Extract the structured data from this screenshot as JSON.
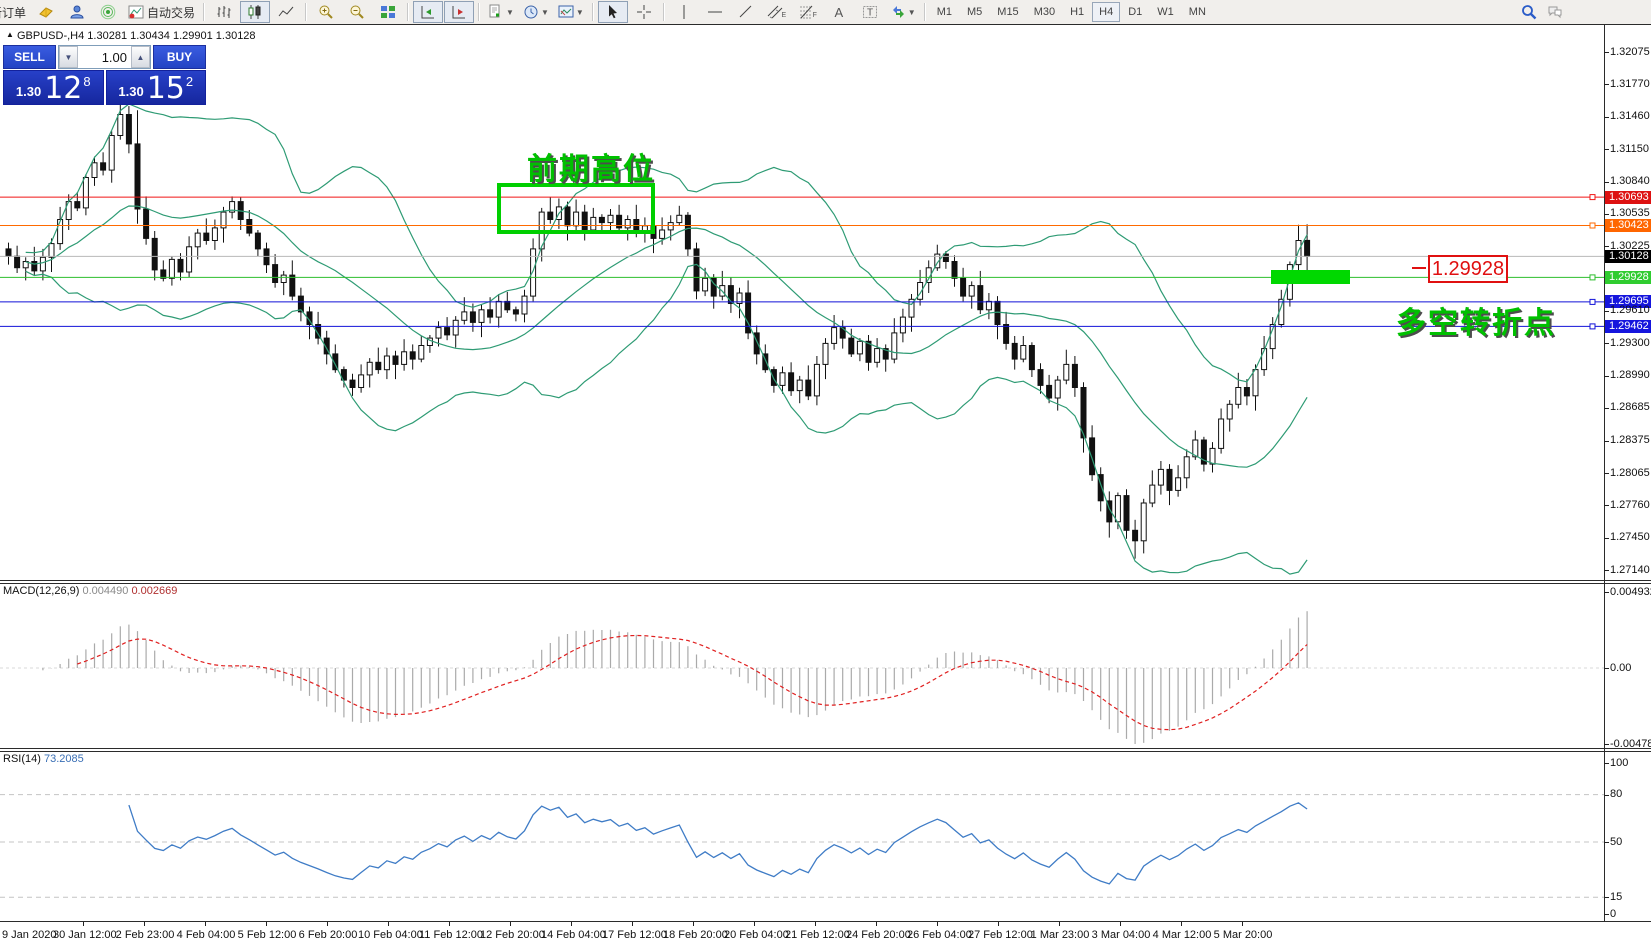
{
  "toolbar": {
    "new_order_label": "新订单",
    "autotrading_label": "自动交易",
    "timeframes": {
      "items": [
        "M1",
        "M5",
        "M15",
        "M30",
        "H1",
        "H4",
        "D1",
        "W1",
        "MN"
      ],
      "selected": "H4"
    },
    "icons": {
      "metaeditor": "yellow-book",
      "accounts": "user-blue",
      "signals": "green-signal",
      "autotrading": "chart-play",
      "bar_chart": "ohlc-bars",
      "candlesticks": "candlestick-chart",
      "line_chart": "line-chart",
      "zoom_in": "magnifier-plus",
      "zoom_out": "magnifier-minus",
      "tile_windows": "tiled-squares",
      "chart_shift": "axis-green-arrow",
      "auto_scroll": "axis-red-arrow",
      "indicators": "sheet-green-plus",
      "periods": "clock",
      "templates": "chart-picture",
      "cursor": "pointer-arrow",
      "crosshair": "crosshair",
      "vertical_line": "vertical-line",
      "horizontal_line": "horizontal-line",
      "trendline": "diagonal-line",
      "channel": "equidistant-channel",
      "fibonacci": "fibo-retracement",
      "text": "letter-a",
      "text_label": "boxed-t",
      "arrows": "arrow-shapes",
      "search": "blue-magnifier",
      "chat": "speech-bubbles"
    }
  },
  "chart": {
    "title": {
      "collapse_arrow": "▲",
      "symbol_period": "GBPUSD-,H4",
      "open": "1.30281",
      "high": "1.30434",
      "low": "1.29901",
      "close": "1.30128"
    },
    "one_click": {
      "sell_label": "SELL",
      "buy_label": "BUY",
      "volume": "1.00",
      "sell_price_small": "1.30",
      "sell_price_big": "12",
      "sell_price_sup": "8",
      "buy_price_small": "1.30",
      "buy_price_big": "15",
      "buy_price_sup": "2"
    },
    "annotations": {
      "prev_high_label": "前期高位",
      "turning_point_label": "多空转折点",
      "price_callout": "1.29928"
    },
    "price_lines": [
      {
        "price": 1.30693,
        "label": "1.30693",
        "line_color": "#f01515",
        "badge_bg": "#dd1111"
      },
      {
        "price": 1.30423,
        "label": "1.30423",
        "line_color": "#ff6a00",
        "badge_bg": "#ff6600"
      },
      {
        "price": 1.30128,
        "label": "1.30128",
        "line_color": "#b8b8b8",
        "badge_bg": "#000000"
      },
      {
        "price": 1.29928,
        "label": "1.29928",
        "line_color": "#2dbe2d",
        "badge_bg": "#2fcc2f"
      },
      {
        "price": 1.29695,
        "label": "1.29695",
        "line_color": "#1212d8",
        "badge_bg": "#1515dd"
      },
      {
        "price": 1.29462,
        "label": "1.29462",
        "line_color": "#1212d8",
        "badge_bg": "#1515dd"
      }
    ],
    "axis_ticks": [
      "1.32075",
      "1.31770",
      "1.31460",
      "1.31150",
      "1.30840",
      "1.30535",
      "1.30225",
      "1.29610",
      "1.29300",
      "1.28990",
      "1.28685",
      "1.28375",
      "1.28065",
      "1.27760",
      "1.27450",
      "1.27140"
    ]
  },
  "macd": {
    "label": "MACD(12,26,9)",
    "value_main": "0.004490",
    "value_signal": "0.002669",
    "axis": [
      "0.004932",
      "0.00",
      "-0.00478"
    ]
  },
  "rsi": {
    "label": "RSI(14)",
    "value": "73.2085",
    "axis": [
      "100",
      "80",
      "50",
      "15",
      "0"
    ],
    "levels": [
      80,
      50,
      15
    ]
  },
  "time_axis": {
    "labels": [
      "9 Jan 2020",
      "30 Jan 12:00",
      "2 Feb 23:00",
      "4 Feb 04:00",
      "5 Feb 12:00",
      "6 Feb 20:00",
      "10 Feb 04:00",
      "11 Feb 12:00",
      "12 Feb 20:00",
      "14 Feb 04:00",
      "17 Feb 12:00",
      "18 Feb 20:00",
      "20 Feb 04:00",
      "21 Feb 12:00",
      "24 Feb 20:00",
      "26 Feb 04:00",
      "27 Feb 12:00",
      "1 Mar 23:00",
      "3 Mar 04:00",
      "4 Mar 12:00",
      "5 Mar 20:00"
    ]
  },
  "chart_data": {
    "type": "candlestick",
    "symbol": "GBPUSD-",
    "period": "H4",
    "ohlc_current": {
      "open": 1.30281,
      "high": 1.30434,
      "low": 1.29901,
      "close": 1.30128
    },
    "indicators": [
      {
        "type": "bollinger",
        "period": 20,
        "deviation": 2,
        "color": "#2e9b74"
      },
      {
        "type": "macd",
        "fast": 12,
        "slow": 26,
        "signal": 9,
        "main_shown": 0.00449,
        "signal_shown": 0.002669,
        "axis_range": [
          0.004932,
          -0.00478
        ],
        "histogram_color": "#aaaaaa",
        "signal_color": "#e02020"
      },
      {
        "type": "rsi",
        "period": 14,
        "value_shown": 73.2085,
        "levels": [
          80,
          50,
          15
        ],
        "color": "#3f7cc6"
      }
    ],
    "candles": [
      [
        1.302,
        1.3026,
        1.3005,
        1.3013
      ],
      [
        1.3013,
        1.3023,
        1.2997,
        1.3002
      ],
      [
        1.3002,
        1.3012,
        1.299,
        1.3008
      ],
      [
        1.3008,
        1.3022,
        1.2995,
        1.2999
      ],
      [
        1.2999,
        1.302,
        1.299,
        1.3012
      ],
      [
        1.3012,
        1.303,
        1.2998,
        1.3025
      ],
      [
        1.3025,
        1.306,
        1.3019,
        1.3048
      ],
      [
        1.3048,
        1.3072,
        1.3038,
        1.3065
      ],
      [
        1.3065,
        1.3074,
        1.3056,
        1.3059
      ],
      [
        1.3059,
        1.3091,
        1.3052,
        1.3088
      ],
      [
        1.3088,
        1.3108,
        1.308,
        1.3102
      ],
      [
        1.3102,
        1.3112,
        1.309,
        1.3095
      ],
      [
        1.3095,
        1.3132,
        1.3083,
        1.3128
      ],
      [
        1.3128,
        1.3165,
        1.3124,
        1.3148
      ],
      [
        1.3148,
        1.3156,
        1.3111,
        1.312
      ],
      [
        1.312,
        1.3152,
        1.3044,
        1.3058
      ],
      [
        1.3058,
        1.307,
        1.3024,
        1.303
      ],
      [
        1.303,
        1.3037,
        1.299,
        1.3
      ],
      [
        1.3,
        1.3009,
        1.2989,
        1.2992
      ],
      [
        1.2992,
        1.3013,
        1.2985,
        1.301
      ],
      [
        1.301,
        1.3016,
        1.299,
        1.2998
      ],
      [
        1.2998,
        1.3032,
        1.2993,
        1.3022
      ],
      [
        1.3022,
        1.3039,
        1.301,
        1.3035
      ],
      [
        1.3035,
        1.3049,
        1.3024,
        1.3028
      ],
      [
        1.3028,
        1.3048,
        1.3019,
        1.304
      ],
      [
        1.304,
        1.306,
        1.3026,
        1.3055
      ],
      [
        1.3055,
        1.307,
        1.3049,
        1.3065
      ],
      [
        1.3065,
        1.3069,
        1.3038,
        1.3048
      ],
      [
        1.3048,
        1.3057,
        1.3032,
        1.3035
      ],
      [
        1.3035,
        1.3038,
        1.3013,
        1.302
      ],
      [
        1.302,
        1.3026,
        1.2997,
        1.3005
      ],
      [
        1.3005,
        1.3015,
        1.2983,
        1.2988
      ],
      [
        1.2988,
        1.2999,
        1.2976,
        1.2995
      ],
      [
        1.2995,
        1.3009,
        1.2971,
        1.2975
      ],
      [
        1.2975,
        1.2983,
        1.2951,
        1.296
      ],
      [
        1.296,
        1.2965,
        1.2934,
        1.2948
      ],
      [
        1.2948,
        1.296,
        1.2929,
        1.2935
      ],
      [
        1.2935,
        1.2942,
        1.291,
        1.292
      ],
      [
        1.292,
        1.2929,
        1.2902,
        1.2905
      ],
      [
        1.2905,
        1.2908,
        1.2888,
        1.2895
      ],
      [
        1.2895,
        1.2901,
        1.288,
        1.2888
      ],
      [
        1.2888,
        1.291,
        1.2883,
        1.29
      ],
      [
        1.29,
        1.2916,
        1.2888,
        1.2912
      ],
      [
        1.2912,
        1.2926,
        1.2901,
        1.2905
      ],
      [
        1.2905,
        1.2926,
        1.2896,
        1.2918
      ],
      [
        1.2918,
        1.2923,
        1.2896,
        1.291
      ],
      [
        1.291,
        1.2934,
        1.2904,
        1.2922
      ],
      [
        1.2922,
        1.2929,
        1.2905,
        1.2915
      ],
      [
        1.2915,
        1.2937,
        1.2912,
        1.2928
      ],
      [
        1.2928,
        1.2938,
        1.2921,
        1.2935
      ],
      [
        1.2935,
        1.2951,
        1.2927,
        1.2945
      ],
      [
        1.2945,
        1.2955,
        1.2933,
        1.2938
      ],
      [
        1.2938,
        1.2956,
        1.2926,
        1.2952
      ],
      [
        1.2952,
        1.2974,
        1.2948,
        1.296
      ],
      [
        1.296,
        1.2968,
        1.2941,
        1.295
      ],
      [
        1.295,
        1.2967,
        1.2936,
        1.2962
      ],
      [
        1.2962,
        1.2974,
        1.2949,
        1.2955
      ],
      [
        1.2955,
        1.2977,
        1.2945,
        1.297
      ],
      [
        1.297,
        1.2979,
        1.2959,
        1.2962
      ],
      [
        1.2962,
        1.2965,
        1.2951,
        1.2958
      ],
      [
        1.2958,
        1.2981,
        1.295,
        1.2975
      ],
      [
        1.2975,
        1.303,
        1.297,
        1.302
      ],
      [
        1.302,
        1.3059,
        1.3008,
        1.3055
      ],
      [
        1.3055,
        1.3069,
        1.3044,
        1.3048
      ],
      [
        1.3048,
        1.3068,
        1.3039,
        1.306
      ],
      [
        1.306,
        1.3065,
        1.3028,
        1.3042
      ],
      [
        1.3042,
        1.3067,
        1.3036,
        1.3055
      ],
      [
        1.3055,
        1.3062,
        1.3028,
        1.3038
      ],
      [
        1.3038,
        1.3059,
        1.3035,
        1.305
      ],
      [
        1.305,
        1.3053,
        1.3038,
        1.3045
      ],
      [
        1.3045,
        1.3058,
        1.3037,
        1.3052
      ],
      [
        1.3052,
        1.3062,
        1.3035,
        1.304
      ],
      [
        1.304,
        1.3052,
        1.3028,
        1.3048
      ],
      [
        1.3048,
        1.3062,
        1.3031,
        1.3035
      ],
      [
        1.3035,
        1.305,
        1.3026,
        1.3042
      ],
      [
        1.3042,
        1.3047,
        1.3016,
        1.303
      ],
      [
        1.303,
        1.305,
        1.3024,
        1.3038
      ],
      [
        1.3038,
        1.3052,
        1.3028,
        1.3045
      ],
      [
        1.3045,
        1.3061,
        1.3042,
        1.3052
      ],
      [
        1.3052,
        1.3055,
        1.3013,
        1.302
      ],
      [
        1.302,
        1.3026,
        1.2972,
        1.298
      ],
      [
        1.298,
        1.3002,
        1.2975,
        1.2992
      ],
      [
        1.2992,
        1.2996,
        1.2963,
        1.2975
      ],
      [
        1.2975,
        1.2999,
        1.2971,
        1.2985
      ],
      [
        1.2985,
        1.2993,
        1.2959,
        1.2968
      ],
      [
        1.2968,
        1.2983,
        1.2954,
        1.2978
      ],
      [
        1.2978,
        1.299,
        1.2934,
        1.294
      ],
      [
        1.294,
        1.2947,
        1.291,
        1.292
      ],
      [
        1.292,
        1.2929,
        1.2902,
        1.2905
      ],
      [
        1.2905,
        1.2908,
        1.2883,
        1.289
      ],
      [
        1.289,
        1.2908,
        1.2882,
        1.2902
      ],
      [
        1.2902,
        1.2912,
        1.288,
        1.2885
      ],
      [
        1.2885,
        1.2899,
        1.2873,
        1.2895
      ],
      [
        1.2895,
        1.2909,
        1.2876,
        1.288
      ],
      [
        1.288,
        1.2918,
        1.2871,
        1.291
      ],
      [
        1.291,
        1.2935,
        1.2896,
        1.293
      ],
      [
        1.293,
        1.2957,
        1.2924,
        1.2945
      ],
      [
        1.2945,
        1.2952,
        1.2925,
        1.2935
      ],
      [
        1.2935,
        1.2944,
        1.2917,
        1.292
      ],
      [
        1.292,
        1.2935,
        1.2913,
        1.2932
      ],
      [
        1.2932,
        1.2938,
        1.2904,
        1.2912
      ],
      [
        1.2912,
        1.2935,
        1.2907,
        1.2925
      ],
      [
        1.2925,
        1.2929,
        1.2903,
        1.2915
      ],
      [
        1.2915,
        1.2954,
        1.2911,
        1.294
      ],
      [
        1.294,
        1.2963,
        1.2931,
        1.2955
      ],
      [
        1.2955,
        1.2977,
        1.2941,
        1.2972
      ],
      [
        1.2972,
        1.3,
        1.2966,
        1.2988
      ],
      [
        1.2988,
        1.3009,
        1.2978,
        1.3002
      ],
      [
        1.3002,
        1.3024,
        1.2999,
        1.3015
      ],
      [
        1.3015,
        1.3018,
        1.3001,
        1.3008
      ],
      [
        1.3008,
        1.3014,
        1.2984,
        1.2992
      ],
      [
        1.2992,
        1.3002,
        1.297,
        1.2975
      ],
      [
        1.2975,
        1.2989,
        1.2963,
        1.2985
      ],
      [
        1.2985,
        1.2999,
        1.2958,
        1.2962
      ],
      [
        1.2962,
        1.2978,
        1.2953,
        1.297
      ],
      [
        1.297,
        1.2975,
        1.2934,
        1.2948
      ],
      [
        1.2948,
        1.296,
        1.2924,
        1.293
      ],
      [
        1.293,
        1.2937,
        1.2905,
        1.2915
      ],
      [
        1.2915,
        1.2937,
        1.2912,
        1.2928
      ],
      [
        1.2928,
        1.2931,
        1.2898,
        1.2905
      ],
      [
        1.2905,
        1.2911,
        1.2882,
        1.289
      ],
      [
        1.289,
        1.29,
        1.2873,
        1.2878
      ],
      [
        1.2878,
        1.2899,
        1.2866,
        1.2895
      ],
      [
        1.2895,
        1.2924,
        1.2891,
        1.291
      ],
      [
        1.291,
        1.2918,
        1.2879,
        1.2888
      ],
      [
        1.2888,
        1.2893,
        1.2826,
        1.284
      ],
      [
        1.284,
        1.2852,
        1.2799,
        1.2805
      ],
      [
        1.2805,
        1.2812,
        1.277,
        1.278
      ],
      [
        1.278,
        1.2789,
        1.2745,
        1.276
      ],
      [
        1.276,
        1.2788,
        1.2753,
        1.2785
      ],
      [
        1.2785,
        1.2791,
        1.2744,
        1.2752
      ],
      [
        1.2752,
        1.2762,
        1.2725,
        1.2742
      ],
      [
        1.2742,
        1.2782,
        1.273,
        1.2778
      ],
      [
        1.2778,
        1.2809,
        1.2774,
        1.2795
      ],
      [
        1.2795,
        1.2818,
        1.2786,
        1.281
      ],
      [
        1.281,
        1.2815,
        1.2776,
        1.279
      ],
      [
        1.279,
        1.2814,
        1.2784,
        1.2802
      ],
      [
        1.2802,
        1.2829,
        1.2792,
        1.2822
      ],
      [
        1.2822,
        1.2847,
        1.2819,
        1.2838
      ],
      [
        1.2838,
        1.2841,
        1.2808,
        1.2815
      ],
      [
        1.2815,
        1.2836,
        1.2807,
        1.283
      ],
      [
        1.283,
        1.2868,
        1.2825,
        1.2858
      ],
      [
        1.2858,
        1.2876,
        1.2846,
        1.2872
      ],
      [
        1.2872,
        1.2902,
        1.2868,
        1.2888
      ],
      [
        1.2888,
        1.2896,
        1.2871,
        1.288
      ],
      [
        1.288,
        1.291,
        1.2866,
        1.2905
      ],
      [
        1.2905,
        1.2937,
        1.2899,
        1.2925
      ],
      [
        1.2925,
        1.2955,
        1.2915,
        1.2948
      ],
      [
        1.2948,
        1.2981,
        1.2945,
        1.2972
      ],
      [
        1.2972,
        1.3008,
        1.2965,
        1.3005
      ],
      [
        1.3005,
        1.3043,
        1.2997,
        1.3028
      ],
      [
        1.30281,
        1.30434,
        1.29901,
        1.30128
      ]
    ]
  }
}
